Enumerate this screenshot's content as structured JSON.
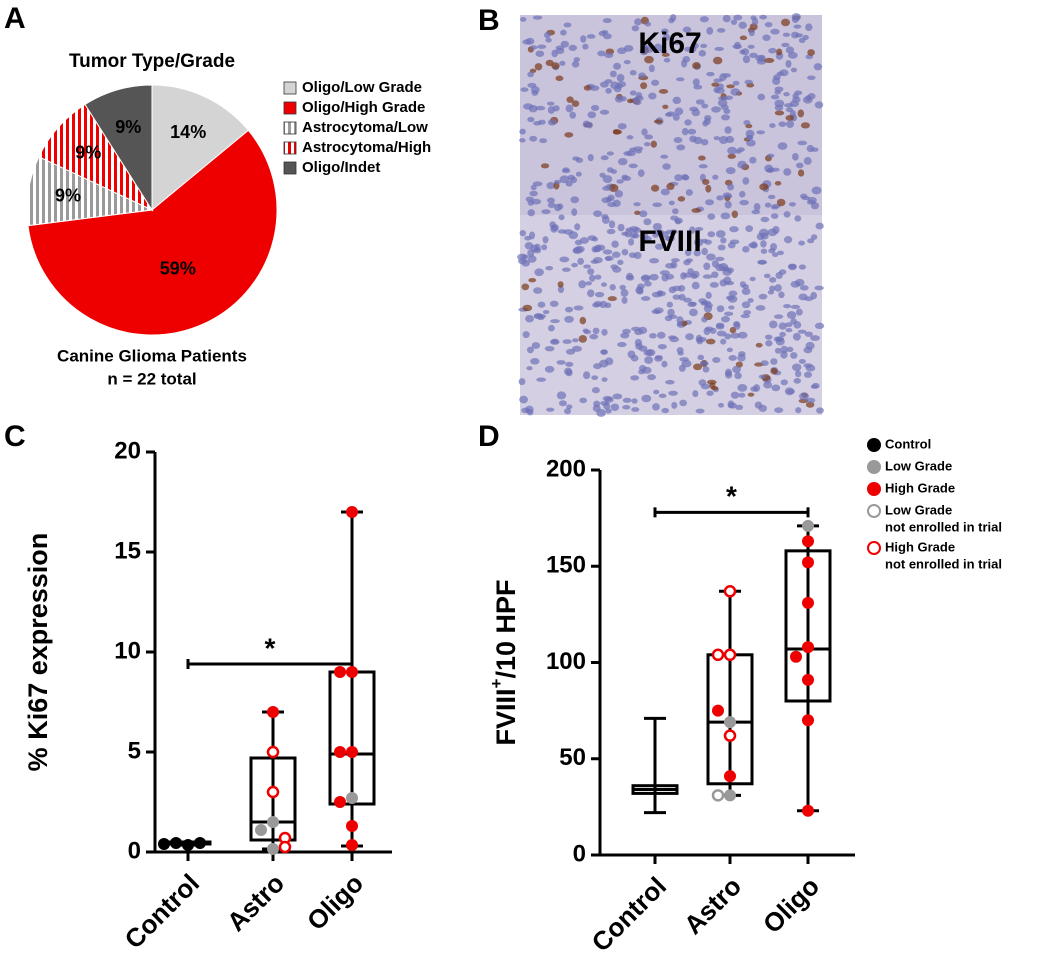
{
  "chart_data": [
    {
      "type": "pie",
      "panel": "A",
      "title": "Tumor Type/Grade",
      "categories": [
        "Oligo/Low Grade",
        "Oligo/High Grade",
        "Astrocytoma/Low",
        "Astrocytoma/High",
        "Oligo/Indet"
      ],
      "values": [
        14,
        59,
        9,
        9,
        9
      ],
      "value_labels": [
        "14%",
        "59%",
        "9%",
        "9%",
        "9%"
      ],
      "colors": [
        "#d4d4d4",
        "#ee0000",
        "#9a9a9a",
        "#ee0000",
        "#555555"
      ],
      "hatched": [
        false,
        false,
        true,
        true,
        false
      ],
      "caption": [
        "Canine Glioma Patients",
        "n = 22 total"
      ]
    },
    {
      "type": "box",
      "panel": "C",
      "ylabel": "% Ki67 expression",
      "categories": [
        "Control",
        "Astro",
        "Oligo"
      ],
      "ylim": [
        0,
        20
      ],
      "yticks": [
        0,
        5,
        10,
        15,
        20
      ],
      "boxes": [
        {
          "min": 0.35,
          "q1": 0.4,
          "median": 0.45,
          "q3": 0.5,
          "max": 0.5
        },
        {
          "min": 0.15,
          "q1": 0.6,
          "median": 1.5,
          "q3": 4.7,
          "max": 7.0
        },
        {
          "min": 0.3,
          "q1": 2.4,
          "median": 4.9,
          "q3": 9.0,
          "max": 17.0
        }
      ],
      "significance": {
        "from": "Control",
        "to": "Oligo",
        "y": 9.4,
        "label": "*"
      },
      "series": [
        {
          "color": "#000000",
          "hollow": false,
          "points": [
            {
              "x": "Control",
              "y": 0.35
            },
            {
              "x": "Control",
              "y": 0.45
            },
            {
              "x": "Control",
              "y": 0.45
            },
            {
              "x": "Control",
              "y": 0.4
            }
          ]
        },
        {
          "color": "#999999",
          "hollow": false,
          "points": [
            {
              "x": "Astro",
              "y": 1.5
            },
            {
              "x": "Astro",
              "y": 1.1
            },
            {
              "x": "Astro",
              "y": 0.15
            },
            {
              "x": "Oligo",
              "y": 2.7
            }
          ]
        },
        {
          "color": "#ee0000",
          "hollow": false,
          "points": [
            {
              "x": "Astro",
              "y": 7.0
            },
            {
              "x": "Oligo",
              "y": 17.0
            },
            {
              "x": "Oligo",
              "y": 9.0
            },
            {
              "x": "Oligo",
              "y": 9.0
            },
            {
              "x": "Oligo",
              "y": 5.0
            },
            {
              "x": "Oligo",
              "y": 5.0
            },
            {
              "x": "Oligo",
              "y": 2.5
            },
            {
              "x": "Oligo",
              "y": 1.3
            },
            {
              "x": "Oligo",
              "y": 0.35
            }
          ]
        },
        {
          "color": "#ee0000",
          "hollow": true,
          "points": [
            {
              "x": "Astro",
              "y": 5.0
            },
            {
              "x": "Astro",
              "y": 3.0
            },
            {
              "x": "Astro",
              "y": 0.7
            },
            {
              "x": "Astro",
              "y": 0.25
            }
          ]
        }
      ]
    },
    {
      "type": "box",
      "panel": "D",
      "ylabel": [
        "FVIII",
        "+",
        "/10  HPF"
      ],
      "categories": [
        "Control",
        "Astro",
        "Oligo"
      ],
      "ylim": [
        0,
        200
      ],
      "yticks": [
        0,
        50,
        100,
        150,
        200
      ],
      "boxes": [
        {
          "min": 22,
          "q1": 32,
          "median": 34,
          "q3": 36,
          "max": 71
        },
        {
          "min": 31,
          "q1": 37,
          "median": 69,
          "q3": 104,
          "max": 137
        },
        {
          "min": 23,
          "q1": 80,
          "median": 107,
          "q3": 158,
          "max": 171
        }
      ],
      "significance": {
        "from": "Control",
        "to": "Oligo",
        "y": 178,
        "label": "*"
      },
      "series": [
        {
          "name": [
            "Control"
          ],
          "color": "#000000",
          "hollow": false,
          "points": []
        },
        {
          "name": [
            "Low Grade"
          ],
          "color": "#999999",
          "hollow": false,
          "points": [
            {
              "x": "Astro",
              "y": 69
            },
            {
              "x": "Astro",
              "y": 31
            },
            {
              "x": "Oligo",
              "y": 171
            }
          ]
        },
        {
          "name": [
            "High Grade"
          ],
          "color": "#ee0000",
          "hollow": false,
          "points": [
            {
              "x": "Astro",
              "y": 75
            },
            {
              "x": "Astro",
              "y": 41
            },
            {
              "x": "Oligo",
              "y": 163
            },
            {
              "x": "Oligo",
              "y": 152
            },
            {
              "x": "Oligo",
              "y": 131
            },
            {
              "x": "Oligo",
              "y": 108
            },
            {
              "x": "Oligo",
              "y": 103
            },
            {
              "x": "Oligo",
              "y": 91
            },
            {
              "x": "Oligo",
              "y": 70
            },
            {
              "x": "Oligo",
              "y": 23
            }
          ]
        },
        {
          "name": [
            "Low Grade",
            "not enrolled in trial"
          ],
          "color": "#999999",
          "hollow": true,
          "points": [
            {
              "x": "Astro",
              "y": 31
            }
          ]
        },
        {
          "name": [
            "High Grade",
            "not enrolled in trial"
          ],
          "color": "#ee0000",
          "hollow": true,
          "points": [
            {
              "x": "Astro",
              "y": 137
            },
            {
              "x": "Astro",
              "y": 104
            },
            {
              "x": "Astro",
              "y": 104
            },
            {
              "x": "Astro",
              "y": 62
            }
          ]
        }
      ]
    }
  ],
  "image_panel": {
    "panel": "B",
    "captions": [
      "Ki67",
      "FVIII"
    ]
  }
}
